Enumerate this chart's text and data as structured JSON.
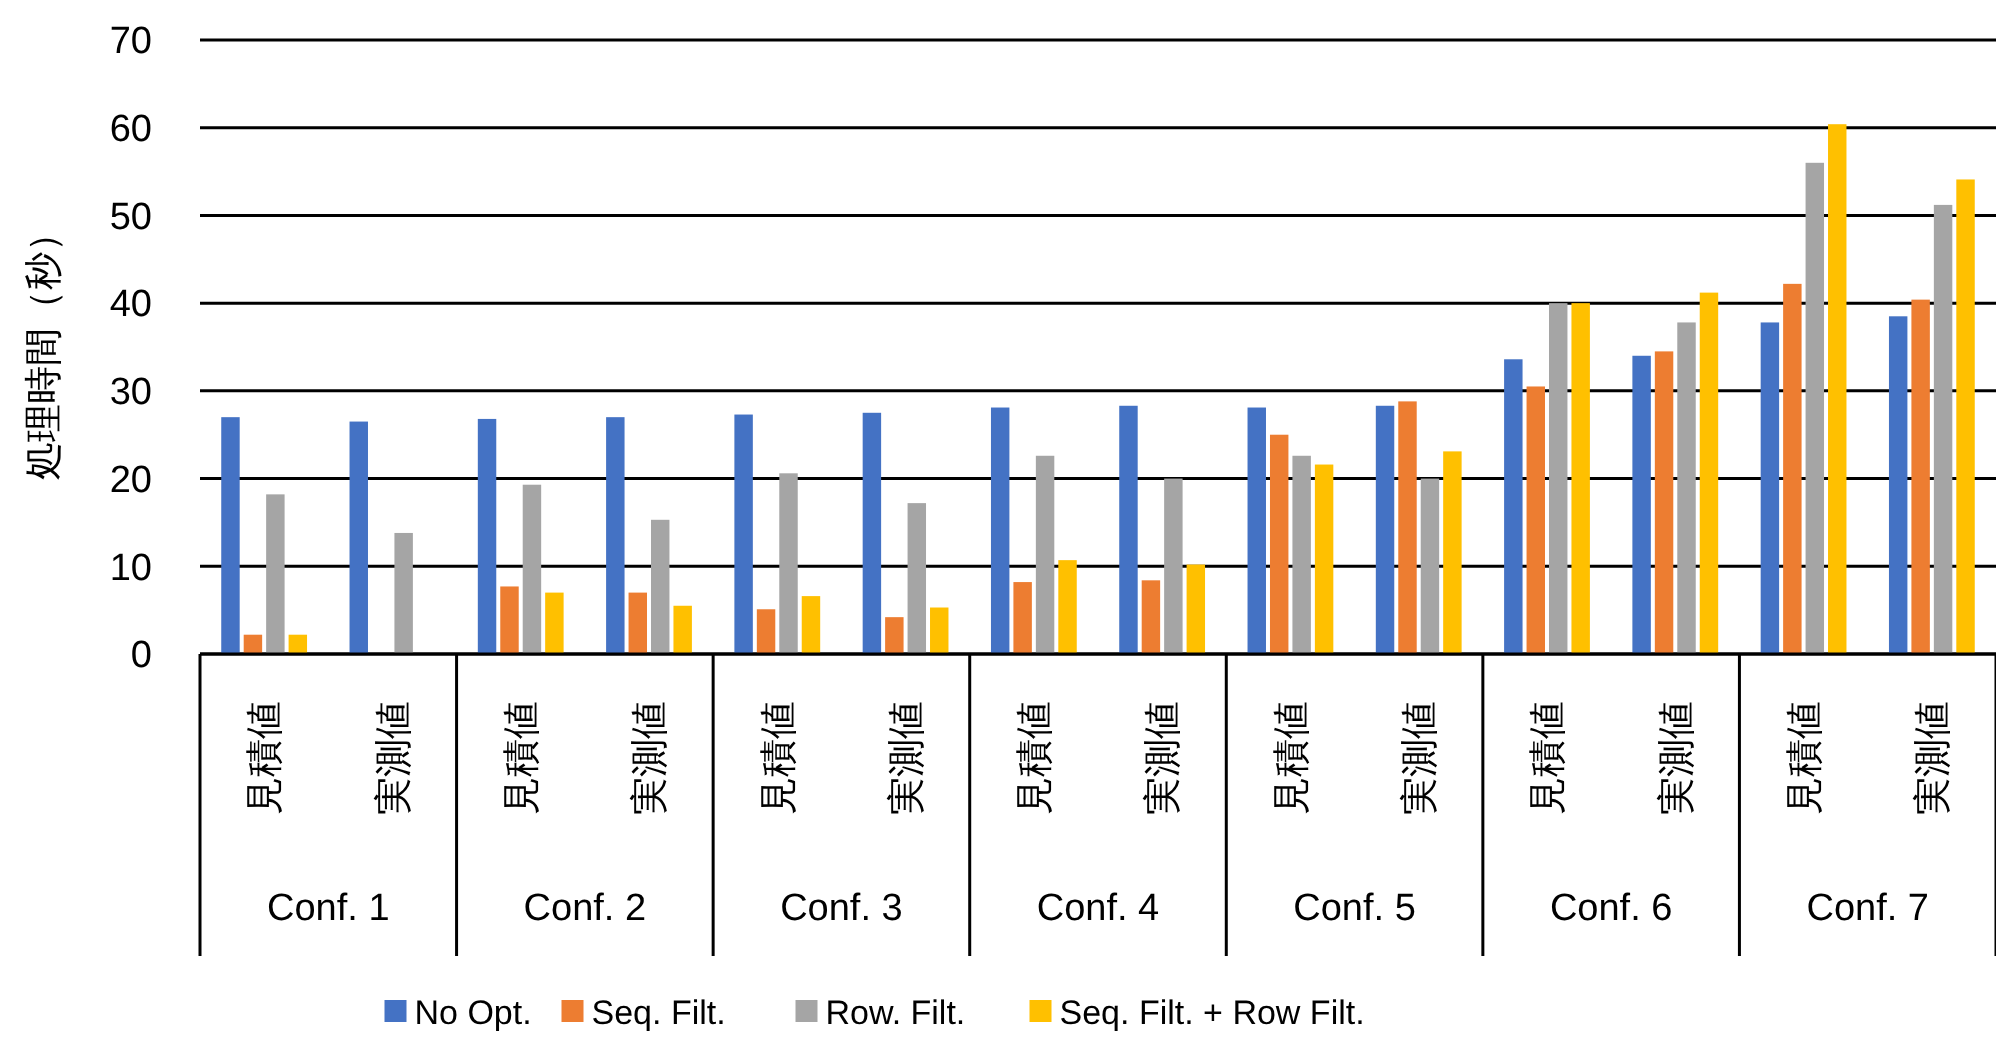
{
  "chart_data": {
    "type": "bar",
    "ylabel": "処理時間（秒）",
    "categories": [
      "見積値",
      "実測値",
      "見積値",
      "実測値",
      "見積値",
      "実測値",
      "見積値",
      "実測値",
      "見積値",
      "実測値",
      "見積値",
      "実測値",
      "見積値",
      "実測値"
    ],
    "annotations": [
      "Conf. 1",
      "Conf. 2",
      "Conf. 3",
      "Conf. 4",
      "Conf. 5",
      "Conf. 6",
      "Conf. 7"
    ],
    "series": [
      {
        "name": "No Opt.",
        "color": "#4472c4",
        "values": [
          27,
          26.5,
          26.8,
          27,
          27.3,
          27.5,
          28.1,
          28.3,
          28.1,
          28.3,
          33.6,
          34,
          37.8,
          38.5
        ]
      },
      {
        "name": "Seq. Filt.",
        "color": "#ed7d31",
        "values": [
          2.2,
          null,
          7.7,
          7,
          5.1,
          4.2,
          8.2,
          8.4,
          25,
          28.8,
          30.5,
          34.5,
          42.2,
          40.4
        ]
      },
      {
        "name": "Row. Filt.",
        "color": "#a5a5a5",
        "values": [
          18.2,
          13.8,
          19.3,
          15.3,
          20.6,
          17.2,
          22.6,
          20,
          22.6,
          20,
          40,
          37.8,
          56,
          51.2
        ]
      },
      {
        "name": "Seq. Filt. + Row Filt.",
        "color": "#ffc000",
        "values": [
          2.2,
          null,
          7,
          5.5,
          6.6,
          5.3,
          10.7,
          10.2,
          21.6,
          23.1,
          40,
          41.2,
          60.4,
          54.1
        ]
      }
    ],
    "ylim": [
      0,
      70
    ],
    "yticks": [
      0,
      10,
      20,
      30,
      40,
      50,
      60,
      70
    ],
    "grid": "y",
    "legend": "bottom"
  }
}
